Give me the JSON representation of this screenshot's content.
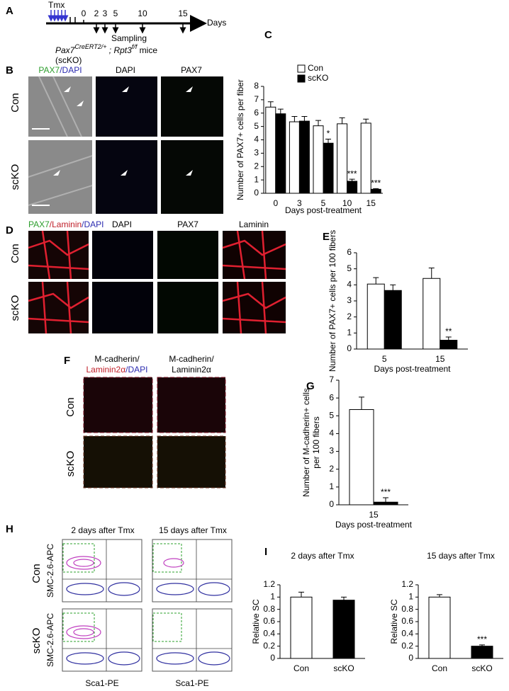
{
  "figure": {
    "a": {
      "label": "A",
      "tmx": "Tmx",
      "days": [
        "0",
        "2",
        "3",
        "5",
        "10",
        "15"
      ],
      "days_unit": "Days",
      "sampling": "Sampling",
      "mouse": [
        "Pax7",
        "CreERT2/+",
        " ; Rpt3",
        "f/f",
        " mice"
      ],
      "scko": "(scKO)"
    },
    "b": {
      "label": "B",
      "headers": [
        [
          "PAX7",
          "/DAPI"
        ],
        [
          "DAPI"
        ],
        [
          "PAX7"
        ]
      ],
      "rows": [
        "Con",
        "scKO"
      ]
    },
    "d": {
      "label": "D",
      "headers": [
        [
          "PAX7",
          "/Laminin",
          "/DAPI"
        ],
        [
          "DAPI"
        ],
        [
          "PAX7"
        ],
        [
          "Laminin"
        ]
      ],
      "rows": [
        "Con",
        "scKO"
      ]
    },
    "f": {
      "label": "F",
      "headers": [
        [
          "M-cadherin/",
          "Laminin2α",
          "/DAPI"
        ],
        [
          "M-cadherin/",
          "Laminin2α"
        ]
      ],
      "rows": [
        "Con",
        "scKO"
      ]
    },
    "h": {
      "label": "H",
      "headers": [
        "2 days after Tmx",
        "15 days after Tmx"
      ],
      "rows": [
        "Con",
        "scKO"
      ],
      "y_axis": "SMC-2.6-APC",
      "x_axis": "Sca1-PE"
    }
  },
  "chart_data": [
    {
      "type": "bar",
      "panel": "C",
      "y_label": [
        "Number of PAX7+ cells per fiber"
      ],
      "x_label": "Days post-treatment",
      "categories": [
        "0",
        "3",
        "5",
        "10",
        "15"
      ],
      "legend": true,
      "series": [
        {
          "name": "Con",
          "color": "#ffffff",
          "values": [
            6.45,
            5.35,
            5.05,
            5.2,
            5.25
          ],
          "errors": [
            0.4,
            0.4,
            0.4,
            0.45,
            0.3
          ],
          "annotations": [
            null,
            null,
            null,
            null,
            null
          ]
        },
        {
          "name": "scKO",
          "color": "#000000",
          "values": [
            5.95,
            5.4,
            3.75,
            0.9,
            0.3
          ],
          "errors": [
            0.35,
            0.35,
            0.3,
            0.15,
            0.05
          ],
          "annotations": [
            null,
            null,
            "*",
            "***",
            "***"
          ]
        }
      ],
      "ylim": [
        0,
        8
      ],
      "yticks": [
        0,
        1,
        2,
        3,
        4,
        5,
        6,
        7,
        8
      ]
    },
    {
      "type": "bar",
      "panel": "E",
      "y_label": [
        "Number of PAX7+ cells per 100 fibers"
      ],
      "x_label": "Days post-treatment",
      "categories": [
        "5",
        "15"
      ],
      "legend": false,
      "series": [
        {
          "color": "#ffffff",
          "values": [
            4.05,
            4.4
          ],
          "errors": [
            0.4,
            0.65
          ],
          "annotations": [
            null,
            null
          ]
        },
        {
          "color": "#000000",
          "values": [
            3.65,
            0.55
          ],
          "errors": [
            0.35,
            0.2
          ],
          "annotations": [
            null,
            "**"
          ]
        }
      ],
      "ylim": [
        0,
        6
      ],
      "yticks": [
        0,
        1,
        2,
        3,
        4,
        5,
        6
      ]
    },
    {
      "type": "bar",
      "panel": "G",
      "y_label": [
        "Number of M-cadherin+ cells",
        "per 100 fibers"
      ],
      "x_label": "Days post-treatment",
      "categories": [
        "15"
      ],
      "legend": false,
      "series": [
        {
          "color": "#ffffff",
          "values": [
            5.35
          ],
          "errors": [
            0.7
          ],
          "annotations": [
            null
          ]
        },
        {
          "color": "#000000",
          "values": [
            0.15
          ],
          "errors": [
            0.25
          ],
          "annotations": [
            "***"
          ]
        }
      ],
      "ylim": [
        0,
        7
      ],
      "yticks": [
        0,
        1,
        2,
        3,
        4,
        5,
        6,
        7
      ]
    },
    {
      "type": "bar",
      "panel": "I",
      "title": "2 days after Tmx",
      "y_label": [
        "Relative SC"
      ],
      "categories": [
        "Con",
        "scKO"
      ],
      "values": [
        1.0,
        0.95
      ],
      "errors": [
        0.08,
        0.05
      ],
      "colors": [
        "#ffffff",
        "#000000"
      ],
      "annotations": [
        null,
        null
      ],
      "ylim": [
        0,
        1.2
      ],
      "yticks": [
        0,
        0.2,
        0.4,
        0.6,
        0.8,
        1,
        1.2
      ]
    },
    {
      "type": "bar",
      "title": "15 days after Tmx",
      "y_label": [
        "Relative SC"
      ],
      "categories": [
        "Con",
        "scKO"
      ],
      "values": [
        1.0,
        0.2
      ],
      "errors": [
        0.04,
        0.02
      ],
      "colors": [
        "#ffffff",
        "#000000"
      ],
      "annotations": [
        null,
        "***"
      ],
      "ylim": [
        0,
        1.2
      ],
      "yticks": [
        0,
        0.2,
        0.4,
        0.6,
        0.8,
        1,
        1.2
      ]
    }
  ]
}
